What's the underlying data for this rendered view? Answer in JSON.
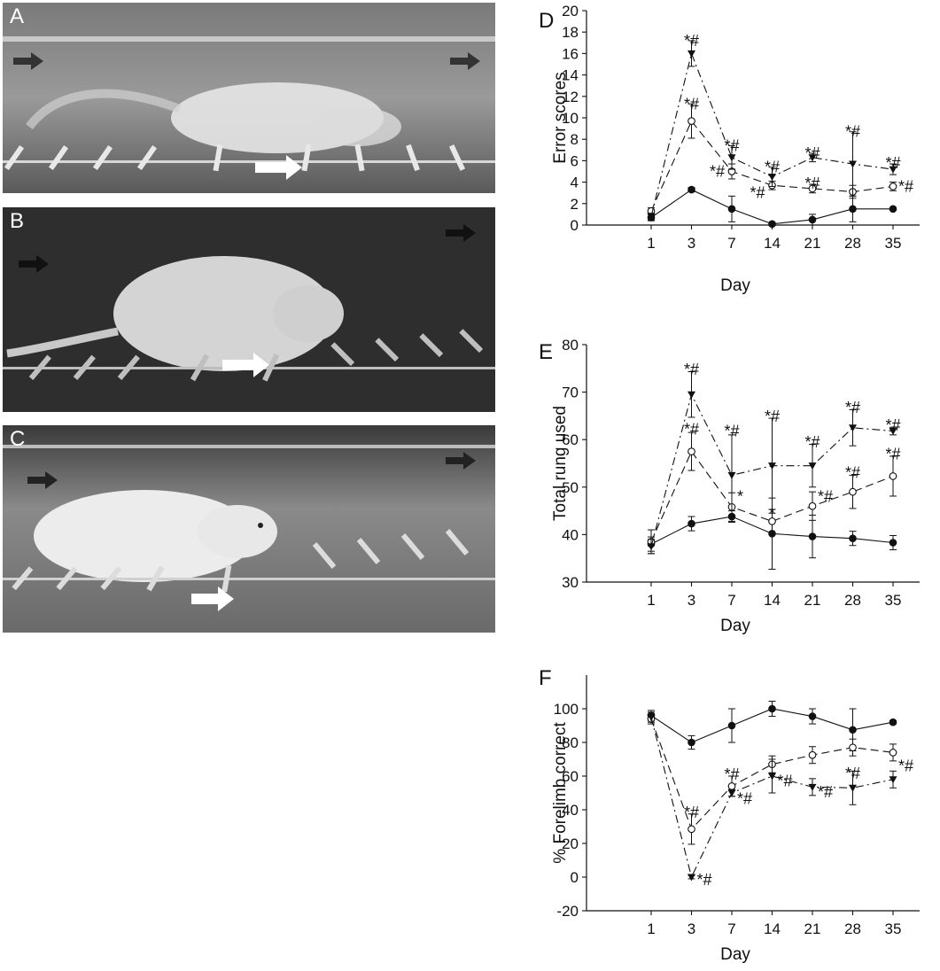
{
  "panels": {
    "A": {
      "label": "A"
    },
    "B": {
      "label": "B"
    },
    "C": {
      "label": "C"
    },
    "D": {
      "label": "D"
    },
    "E": {
      "label": "E"
    },
    "F": {
      "label": "F"
    }
  },
  "colors": {
    "line": "#111111",
    "background": "#ffffff"
  },
  "chart_data": [
    {
      "panel": "D",
      "type": "line",
      "xlabel": "Day",
      "ylabel": "Error scores",
      "categories": [
        "1",
        "3",
        "7",
        "14",
        "21",
        "28",
        "35"
      ],
      "ylim": [
        0,
        20
      ],
      "yticks": [
        0,
        2,
        4,
        6,
        8,
        10,
        12,
        14,
        16,
        18,
        20
      ],
      "series": [
        {
          "marker": "filled-circle",
          "dash": "solid",
          "values": [
            0.7,
            3.3,
            1.5,
            0.1,
            0.5,
            1.5,
            1.5
          ],
          "errors": [
            0.3,
            0.2,
            1.2,
            0.15,
            0.5,
            1.2,
            0.1
          ]
        },
        {
          "marker": "open-circle",
          "dash": "dash",
          "values": [
            1.3,
            9.7,
            5.0,
            3.7,
            3.4,
            3.1,
            3.6
          ],
          "errors": [
            0.3,
            1.6,
            0.7,
            0.4,
            0.4,
            0.6,
            0.4
          ]
        },
        {
          "marker": "filled-triangle-down",
          "dash": "dashdot",
          "values": [
            0.8,
            16.0,
            6.3,
            4.5,
            6.3,
            5.7,
            5.2
          ],
          "errors": [
            0.3,
            1.2,
            1.1,
            0.9,
            0.4,
            3.0,
            0.5
          ]
        }
      ],
      "annotations": [
        {
          "x": "3",
          "y": 17.2,
          "text": "*#"
        },
        {
          "x": "3",
          "y": 11.3,
          "text": "*#"
        },
        {
          "x": "7",
          "y": 7.4,
          "text": "*#"
        },
        {
          "x": "7",
          "y": 5.0,
          "text": "*#",
          "side": "left"
        },
        {
          "x": "14",
          "y": 5.4,
          "text": "*#"
        },
        {
          "x": "14",
          "y": 3.0,
          "text": "*#",
          "side": "left"
        },
        {
          "x": "21",
          "y": 6.7,
          "text": "*#"
        },
        {
          "x": "21",
          "y": 3.9,
          "text": "*#"
        },
        {
          "x": "28",
          "y": 8.7,
          "text": "*#"
        },
        {
          "x": "35",
          "y": 5.8,
          "text": "*#"
        },
        {
          "x": "35",
          "y": 3.6,
          "text": "*#",
          "side": "right"
        }
      ]
    },
    {
      "panel": "E",
      "type": "line",
      "xlabel": "Day",
      "ylabel": "Total rung used",
      "categories": [
        "1",
        "3",
        "7",
        "14",
        "21",
        "28",
        "35"
      ],
      "ylim": [
        30,
        80
      ],
      "yticks": [
        30,
        40,
        50,
        60,
        70,
        80
      ],
      "series": [
        {
          "marker": "filled-circle",
          "dash": "solid",
          "values": [
            38,
            42.3,
            43.8,
            40.2,
            39.6,
            39.2,
            38.3
          ],
          "errors": [
            1.5,
            1.5,
            1.2,
            7.5,
            4.5,
            1.5,
            1.5
          ]
        },
        {
          "marker": "open-circle",
          "dash": "dash",
          "values": [
            38.5,
            57.5,
            45.8,
            42.8,
            46.0,
            49.0,
            52.3
          ],
          "errors": [
            2.5,
            4.0,
            3.0,
            2.5,
            3.0,
            3.5,
            4.2
          ]
        },
        {
          "marker": "filled-triangle-down",
          "dash": "dashdot",
          "values": [
            37.5,
            69.5,
            52.5,
            54.5,
            54.5,
            62.5,
            61.8
          ],
          "errors": [
            1.5,
            4.8,
            8.5,
            10.0,
            4.5,
            3.8,
            0.8
          ]
        }
      ],
      "annotations": [
        {
          "x": "3",
          "y": 74.8,
          "text": "*#"
        },
        {
          "x": "3",
          "y": 62.2,
          "text": "*#"
        },
        {
          "x": "7",
          "y": 61.8,
          "text": "*#"
        },
        {
          "x": "7",
          "y": 48.0,
          "text": "*",
          "side": "right"
        },
        {
          "x": "14",
          "y": 64.9,
          "text": "*#"
        },
        {
          "x": "14",
          "y": 44.5,
          "text": "*"
        },
        {
          "x": "21",
          "y": 59.5,
          "text": "*#"
        },
        {
          "x": "21",
          "y": 48.0,
          "text": "*#",
          "side": "right"
        },
        {
          "x": "28",
          "y": 66.8,
          "text": "*#"
        },
        {
          "x": "28",
          "y": 53.0,
          "text": "*#"
        },
        {
          "x": "35",
          "y": 63.0,
          "text": "*#"
        },
        {
          "x": "35",
          "y": 57.0,
          "text": "*#"
        }
      ]
    },
    {
      "panel": "F",
      "type": "line",
      "xlabel": "Day",
      "ylabel": "% Forelimb correct",
      "categories": [
        "1",
        "3",
        "7",
        "14",
        "21",
        "28",
        "35"
      ],
      "ylim": [
        -20,
        120
      ],
      "yticks": [
        -20,
        0,
        20,
        40,
        60,
        80,
        100
      ],
      "series": [
        {
          "marker": "filled-circle",
          "dash": "solid",
          "values": [
            96,
            80,
            90,
            100,
            95.5,
            87.5,
            92
          ],
          "errors": [
            3,
            4,
            10,
            4.5,
            4.5,
            12.5,
            1
          ]
        },
        {
          "marker": "open-circle",
          "dash": "dash",
          "values": [
            94,
            28.5,
            54,
            67,
            72.5,
            77,
            74
          ],
          "errors": [
            3,
            9,
            6,
            5,
            5,
            5,
            5
          ]
        },
        {
          "marker": "filled-triangle-down",
          "dash": "dashdot",
          "values": [
            95,
            0,
            50,
            60,
            53.5,
            53,
            58
          ],
          "errors": [
            3,
            1,
            2,
            10,
            5,
            10,
            5
          ]
        }
      ],
      "annotations": [
        {
          "x": "3",
          "y": 38.5,
          "text": "*#"
        },
        {
          "x": "3",
          "y": -1.5,
          "text": "*#",
          "side": "right"
        },
        {
          "x": "7",
          "y": 61.0,
          "text": "*#"
        },
        {
          "x": "7",
          "y": 46.5,
          "text": "*#",
          "side": "right"
        },
        {
          "x": "14",
          "y": 57.0,
          "text": "*#",
          "side": "right"
        },
        {
          "x": "21",
          "y": 50.5,
          "text": "*#",
          "side": "right"
        },
        {
          "x": "28",
          "y": 61.5,
          "text": "*#"
        },
        {
          "x": "35",
          "y": 66.0,
          "text": "*#",
          "side": "right"
        }
      ]
    }
  ]
}
